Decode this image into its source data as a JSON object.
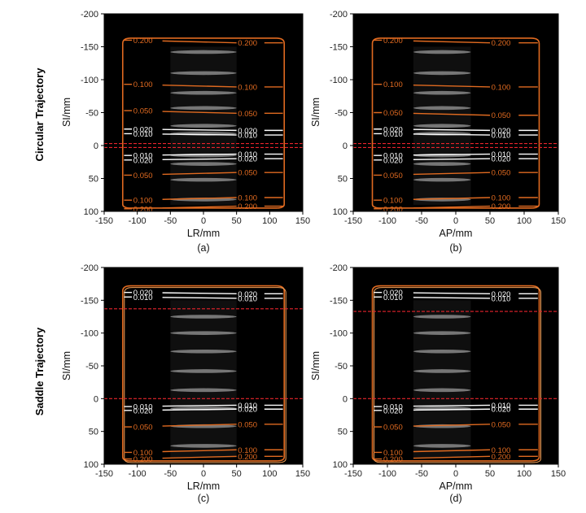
{
  "row_labels": [
    "Circular Trajectory",
    "Saddle Trajectory"
  ],
  "colors": {
    "contour_outer": "#e06a20",
    "contour_inner": "#ffffff",
    "source_plane": "#e8242c",
    "background": "#000000"
  },
  "chart_data": [
    {
      "type": "contour",
      "caption": "(a)",
      "xlabel": "LR/mm",
      "ylabel": "SI/mm",
      "xlim": [
        -150,
        150
      ],
      "ylim": [
        100,
        -200
      ],
      "xticks": [
        -150,
        -100,
        -50,
        0,
        50,
        100,
        150
      ],
      "yticks": [
        -200,
        -150,
        -100,
        -50,
        0,
        50,
        100
      ],
      "contour_levels": [
        "0.200",
        "0.100",
        "0.050",
        "0.020",
        "0.010"
      ],
      "contours": [
        {
          "label": "0.200",
          "y": -160
        },
        {
          "label": "0.100",
          "y": -93
        },
        {
          "label": "0.050",
          "y": -53
        },
        {
          "label": "0.020",
          "y": -25
        },
        {
          "label": "0.010",
          "y": -18
        },
        {
          "label": "0.010",
          "y": 15
        },
        {
          "label": "0.020",
          "y": 22
        },
        {
          "label": "0.050",
          "y": 45
        },
        {
          "label": "0.100",
          "y": 83
        },
        {
          "label": "0.200",
          "y": 96
        }
      ],
      "source_planes": [
        -3,
        3
      ],
      "phantom_discs": [
        -142,
        -110,
        -80,
        -57,
        -30,
        -18,
        15,
        28,
        52,
        82
      ]
    },
    {
      "type": "contour",
      "caption": "(b)",
      "xlabel": "AP/mm",
      "ylabel": "SI/mm",
      "xlim": [
        -150,
        150
      ],
      "ylim": [
        100,
        -200
      ],
      "xticks": [
        -150,
        -100,
        -50,
        0,
        50,
        100,
        150
      ],
      "yticks": [
        -200,
        -150,
        -100,
        -50,
        0,
        50,
        100
      ],
      "contour_levels": [
        "0.200",
        "0.100",
        "0.050",
        "0.020",
        "0.010"
      ],
      "contours": [
        {
          "label": "0.200",
          "y": -160
        },
        {
          "label": "0.100",
          "y": -93
        },
        {
          "label": "0.050",
          "y": -50
        },
        {
          "label": "0.020",
          "y": -25
        },
        {
          "label": "0.010",
          "y": -18
        },
        {
          "label": "0.010",
          "y": 15
        },
        {
          "label": "0.020",
          "y": 22
        },
        {
          "label": "0.050",
          "y": 45
        },
        {
          "label": "0.100",
          "y": 83
        },
        {
          "label": "0.200",
          "y": 96
        }
      ],
      "source_planes": [
        -3,
        3
      ],
      "phantom_discs": [
        -142,
        -110,
        -80,
        -57,
        -30,
        -18,
        15,
        28,
        52,
        82
      ]
    },
    {
      "type": "contour",
      "caption": "(c)",
      "xlabel": "LR/mm",
      "ylabel": "SI/mm",
      "xlim": [
        -150,
        150
      ],
      "ylim": [
        100,
        -200
      ],
      "xticks": [
        -150,
        -100,
        -50,
        0,
        50,
        100,
        150
      ],
      "yticks": [
        -200,
        -150,
        -100,
        -50,
        0,
        50,
        100
      ],
      "contour_levels": [
        "0.200",
        "0.100",
        "0.050",
        "0.020",
        "0.010"
      ],
      "contours": [
        {
          "label": "0.020",
          "y": -162
        },
        {
          "label": "0.010",
          "y": -155
        },
        {
          "label": "0.010",
          "y": 12
        },
        {
          "label": "0.020",
          "y": 18
        },
        {
          "label": "0.050",
          "y": 43
        },
        {
          "label": "0.100",
          "y": 82
        },
        {
          "label": "0.200",
          "y": 92
        }
      ],
      "source_planes": [
        -137,
        0
      ],
      "phantom_discs": [
        -125,
        -100,
        -72,
        -42,
        -13,
        15,
        42,
        72
      ]
    },
    {
      "type": "contour",
      "caption": "(d)",
      "xlabel": "AP/mm",
      "ylabel": "SI/mm",
      "xlim": [
        -150,
        150
      ],
      "ylim": [
        100,
        -200
      ],
      "xticks": [
        -150,
        -100,
        -50,
        0,
        50,
        100,
        150
      ],
      "yticks": [
        -200,
        -150,
        -100,
        -50,
        0,
        50,
        100
      ],
      "contour_levels": [
        "0.200",
        "0.100",
        "0.050",
        "0.020",
        "0.010"
      ],
      "contours": [
        {
          "label": "0.020",
          "y": -162
        },
        {
          "label": "0.010",
          "y": -155
        },
        {
          "label": "0.010",
          "y": 12
        },
        {
          "label": "0.020",
          "y": 18
        },
        {
          "label": "0.050",
          "y": 43
        },
        {
          "label": "0.100",
          "y": 82
        },
        {
          "label": "0.200",
          "y": 92
        }
      ],
      "source_planes": [
        -133,
        0
      ],
      "phantom_discs": [
        -125,
        -100,
        -72,
        -42,
        -13,
        15,
        42,
        72
      ]
    }
  ]
}
